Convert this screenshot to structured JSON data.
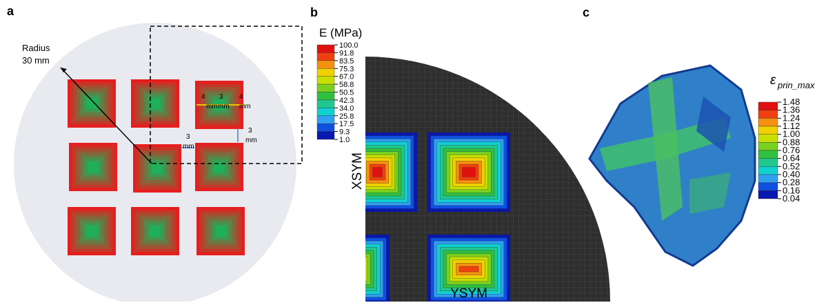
{
  "panels": {
    "a": "a",
    "b": "b",
    "c": "c"
  },
  "panel_a": {
    "radius_label": [
      "Radius",
      "30 mm"
    ],
    "dims": [
      {
        "num": "4",
        "unit": "mm"
      },
      {
        "num": "3",
        "unit": "mm"
      },
      {
        "num": "4",
        "unit": "mm"
      },
      {
        "num": "3",
        "unit": "mm"
      },
      {
        "num": "3",
        "unit": "mm"
      }
    ]
  },
  "panel_b": {
    "colorbar_title": "E (MPa)",
    "colorbar_labels": [
      "100.0",
      "91.8",
      "83.5",
      "75.3",
      "67.0",
      "58.8",
      "50.5",
      "42.3",
      "34.0",
      "25.8",
      "17.5",
      "9.3",
      "1.0"
    ],
    "x_sym": "XSYM",
    "y_sym": "YSYM"
  },
  "panel_c": {
    "colorbar_symbol": "ε",
    "colorbar_subscript": "prin_max",
    "colorbar_labels": [
      "1.48",
      "1.36",
      "1.24",
      "1.12",
      "1.00",
      "0.88",
      "0.76",
      "0.64",
      "0.52",
      "0.40",
      "0.28",
      "0.16",
      "0.04"
    ]
  }
}
